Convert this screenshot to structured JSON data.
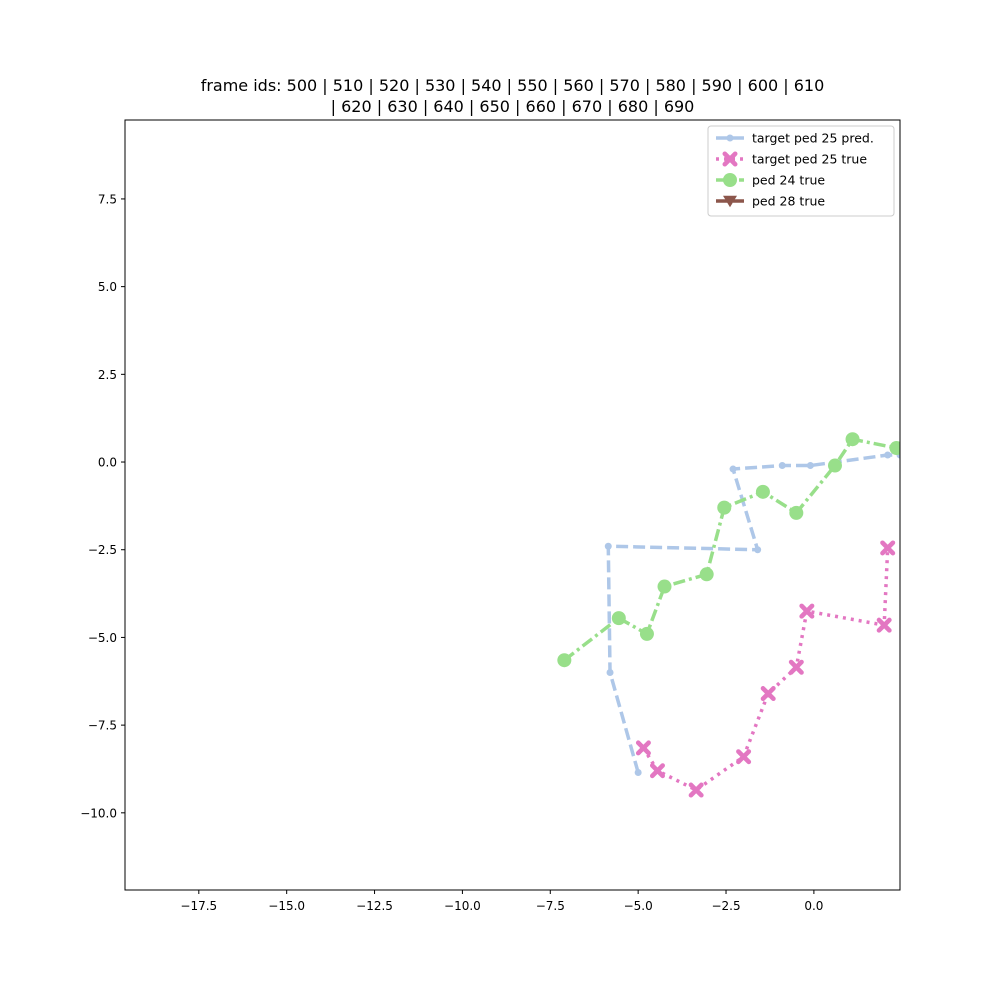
{
  "chart_data": {
    "type": "line",
    "title_lines": [
      "frame ids: 500 | 510 | 520 | 530 | 540 | 550 | 560 | 570 | 580 | 590 | 600 | 610",
      "| 620 | 630 | 640 | 650 | 660 | 670 | 680 | 690"
    ],
    "xlabel": "",
    "ylabel": "",
    "xlim": [
      -19.6,
      2.45
    ],
    "ylim": [
      -12.2,
      9.75
    ],
    "xticks": [
      -17.5,
      -15.0,
      -12.5,
      -10.0,
      -7.5,
      -5.0,
      -2.5,
      0.0
    ],
    "xtick_labels": [
      "−17.5",
      "−15.0",
      "−12.5",
      "−10.0",
      "−7.5",
      "−5.0",
      "−2.5",
      "0.0"
    ],
    "yticks": [
      -10.0,
      -7.5,
      -5.0,
      -2.5,
      0.0,
      2.5,
      5.0,
      7.5
    ],
    "ytick_labels": [
      "−10.0",
      "−7.5",
      "−5.0",
      "−2.5",
      "0.0",
      "2.5",
      "5.0",
      "7.5"
    ],
    "grid": false,
    "legend_position": "top-right",
    "series": [
      {
        "name": "target ped 25 pred.",
        "color": "#aec7e8",
        "dash": "dashed",
        "marker": "circle-small",
        "x": [
          -5.0,
          -5.8,
          -5.85,
          -1.6,
          -2.3,
          -0.9,
          -0.1,
          2.1,
          2.45
        ],
        "y": [
          -8.85,
          -6.0,
          -2.4,
          -2.5,
          -0.2,
          -0.1,
          -0.1,
          0.2,
          0.2
        ]
      },
      {
        "name": "target ped 25 true",
        "color": "#e377c2",
        "dash": "dotted",
        "marker": "x-filled",
        "x": [
          -4.85,
          -4.45,
          -3.35,
          -2.0,
          -1.3,
          -0.5,
          -0.2,
          2.0,
          2.1
        ],
        "y": [
          -8.15,
          -8.8,
          -9.35,
          -8.4,
          -6.6,
          -5.85,
          -4.25,
          -4.65,
          -2.45
        ]
      },
      {
        "name": "ped 24 true",
        "color": "#98df8a",
        "dash": "dashdot",
        "marker": "circle-large",
        "x": [
          -7.1,
          -5.55,
          -4.75,
          -4.25,
          -3.05,
          -2.55,
          -1.45,
          -0.5,
          0.6,
          1.1,
          2.35
        ],
        "y": [
          -5.65,
          -4.45,
          -4.9,
          -3.55,
          -3.2,
          -1.3,
          -0.85,
          -1.45,
          -0.1,
          0.65,
          0.4
        ]
      },
      {
        "name": "ped 28 true",
        "color": "#8c564b",
        "dash": "dashed",
        "marker": "triangle-down",
        "x": [],
        "y": []
      }
    ]
  }
}
